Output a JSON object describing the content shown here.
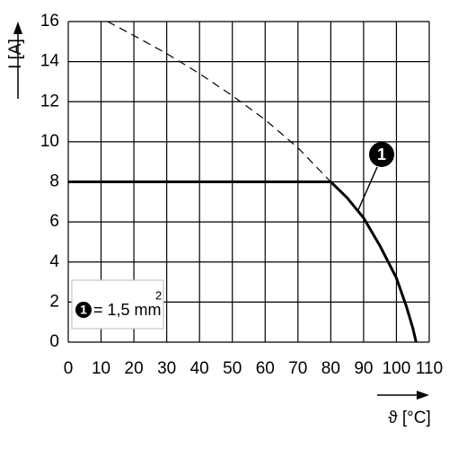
{
  "chart_data": {
    "type": "line",
    "x_label": "ϑ [°C]",
    "y_label": "I [A]",
    "xlim": [
      0,
      110
    ],
    "ylim": [
      0,
      16
    ],
    "xticks": [
      0,
      10,
      20,
      30,
      40,
      50,
      60,
      70,
      80,
      90,
      100,
      110
    ],
    "yticks": [
      0,
      2,
      4,
      6,
      8,
      10,
      12,
      14,
      16
    ],
    "grid": true,
    "series": [
      {
        "color": "#000000",
        "style": "solid",
        "x": [
          0,
          80,
          85,
          90,
          95,
          100,
          103,
          105,
          106
        ],
        "values": [
          8,
          8,
          7.2,
          6.2,
          4.8,
          3.2,
          1.8,
          0.7,
          0
        ]
      },
      {
        "color": "#000000",
        "style": "dashed",
        "x": [
          12,
          20,
          30,
          40,
          50,
          60,
          70,
          80
        ],
        "values": [
          16,
          15.3,
          14.4,
          13.4,
          12.3,
          11.1,
          9.7,
          8
        ]
      }
    ],
    "annotation": "1",
    "legend": {
      "marker": "1",
      "text": "= 1,5 mm",
      "superscript": "2"
    }
  }
}
